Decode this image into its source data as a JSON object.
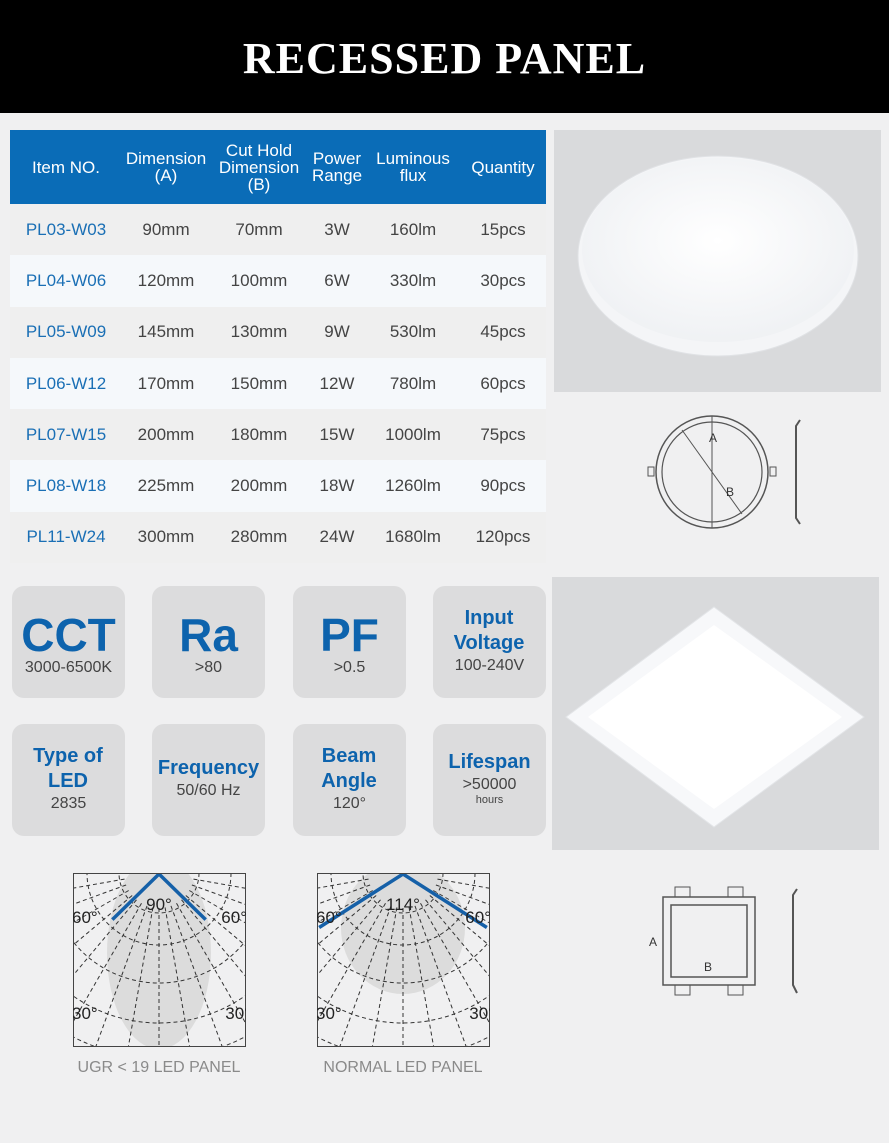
{
  "title": "RECESSED PANEL",
  "table": {
    "headers": [
      "Item NO.",
      "Dimension (A)",
      "Cut Hold Dimension (B)",
      "Power Range",
      "Luminous flux",
      "Quantity"
    ],
    "rows": [
      [
        "PL03-W03",
        "90mm",
        "70mm",
        "3W",
        "160lm",
        "15pcs"
      ],
      [
        "PL04-W06",
        "120mm",
        "100mm",
        "6W",
        "330lm",
        "30pcs"
      ],
      [
        "PL05-W09",
        "145mm",
        "130mm",
        "9W",
        "530lm",
        "45pcs"
      ],
      [
        "PL06-W12",
        "170mm",
        "150mm",
        "12W",
        "780lm",
        "60pcs"
      ],
      [
        "PL07-W15",
        "200mm",
        "180mm",
        "15W",
        "1000lm",
        "75pcs"
      ],
      [
        "PL08-W18",
        "225mm",
        "200mm",
        "18W",
        "1260lm",
        "90pcs"
      ],
      [
        "PL11-W24",
        "300mm",
        "280mm",
        "24W",
        "1680lm",
        "120pcs"
      ]
    ]
  },
  "specs": [
    {
      "title": "CCT",
      "value": "3000-6500K"
    },
    {
      "title": "Ra",
      "value": ">80"
    },
    {
      "title": "PF",
      "value": ">0.5"
    },
    {
      "title": "Input Voltage",
      "value": "100-240V"
    },
    {
      "title": "Type of LED",
      "value": "2835"
    },
    {
      "title": "Frequency",
      "value": "50/60 Hz"
    },
    {
      "title": "Beam Angle",
      "value": "120°"
    },
    {
      "title": "Lifespan",
      "value": ">50000",
      "unit": "hours"
    }
  ],
  "diagrams": {
    "round_a": "A",
    "round_b": "B",
    "square_a": "A",
    "square_b": "B"
  },
  "polar": [
    {
      "angle_label": "90°",
      "beam_angle": 90,
      "label_60": "60°",
      "label_30": "30°",
      "caption": "UGR < 19 LED PANEL"
    },
    {
      "angle_label": "114°",
      "beam_angle": 114,
      "label_60": "60°",
      "label_30": "30°",
      "caption": "NORMAL LED PANEL"
    }
  ],
  "colors": {
    "accent": "#0a6cb7",
    "beam": "#1560a8",
    "header_bg": "#000000"
  }
}
